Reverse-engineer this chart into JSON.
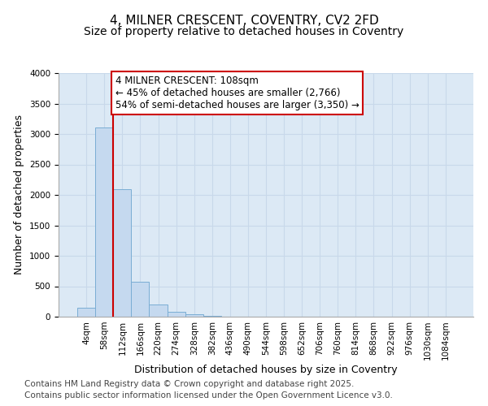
{
  "title_line1": "4, MILNER CRESCENT, COVENTRY, CV2 2FD",
  "title_line2": "Size of property relative to detached houses in Coventry",
  "xlabel": "Distribution of detached houses by size in Coventry",
  "ylabel": "Number of detached properties",
  "bar_labels": [
    "4sqm",
    "58sqm",
    "112sqm",
    "166sqm",
    "220sqm",
    "274sqm",
    "328sqm",
    "382sqm",
    "436sqm",
    "490sqm",
    "544sqm",
    "598sqm",
    "652sqm",
    "706sqm",
    "760sqm",
    "814sqm",
    "868sqm",
    "922sqm",
    "976sqm",
    "1030sqm",
    "1084sqm"
  ],
  "bar_values": [
    150,
    3110,
    2090,
    580,
    205,
    75,
    35,
    10,
    0,
    0,
    0,
    0,
    0,
    0,
    0,
    0,
    0,
    0,
    0,
    0,
    0
  ],
  "bar_color": "#c5d9ef",
  "bar_edge_color": "#7aadd4",
  "vline_color": "#cc0000",
  "annotation_text": "4 MILNER CRESCENT: 108sqm\n← 45% of detached houses are smaller (2,766)\n54% of semi-detached houses are larger (3,350) →",
  "annotation_box_color": "#ffffff",
  "annotation_box_edge_color": "#cc0000",
  "ylim": [
    0,
    4000
  ],
  "yticks": [
    0,
    500,
    1000,
    1500,
    2000,
    2500,
    3000,
    3500,
    4000
  ],
  "grid_color": "#c8d8ea",
  "bg_color": "#ffffff",
  "plot_bg_color": "#dce9f5",
  "footer_line1": "Contains HM Land Registry data © Crown copyright and database right 2025.",
  "footer_line2": "Contains public sector information licensed under the Open Government Licence v3.0.",
  "title_fontsize": 11,
  "subtitle_fontsize": 10,
  "axis_label_fontsize": 9,
  "tick_fontsize": 7.5,
  "annotation_fontsize": 8.5,
  "footer_fontsize": 7.5
}
